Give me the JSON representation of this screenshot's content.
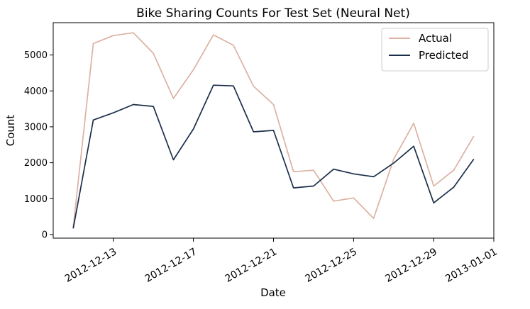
{
  "chart_data": {
    "type": "line",
    "title": "Bike Sharing Counts For Test Set (Neural Net)",
    "xlabel": "Date",
    "ylabel": "Count",
    "x": [
      "2012-12-11",
      "2012-12-12",
      "2012-12-13",
      "2012-12-14",
      "2012-12-15",
      "2012-12-16",
      "2012-12-17",
      "2012-12-18",
      "2012-12-19",
      "2012-12-20",
      "2012-12-21",
      "2012-12-22",
      "2012-12-23",
      "2012-12-24",
      "2012-12-25",
      "2012-12-26",
      "2012-12-27",
      "2012-12-28",
      "2012-12-29",
      "2012-12-30",
      "2012-12-31"
    ],
    "xlim": [
      "2012-12-10",
      "2013-01-01"
    ],
    "ylim": [
      -100,
      5900
    ],
    "x_ticks": [
      "2012-12-13",
      "2012-12-17",
      "2012-12-21",
      "2012-12-25",
      "2012-12-29",
      "2013-01-01"
    ],
    "y_ticks": [
      0,
      1000,
      2000,
      3000,
      4000,
      5000
    ],
    "series": [
      {
        "name": "Actual",
        "color": "#dbb2a3",
        "values": [
          200,
          5320,
          5540,
          5620,
          5050,
          3790,
          4590,
          5560,
          5270,
          4130,
          3620,
          1750,
          1790,
          930,
          1020,
          450,
          2100,
          3100,
          1350,
          1790,
          2740
        ]
      },
      {
        "name": "Predicted",
        "color": "#1b2f4a",
        "values": [
          170,
          3190,
          3390,
          3620,
          3570,
          2080,
          2940,
          4160,
          4140,
          2860,
          2900,
          1300,
          1350,
          1820,
          1690,
          1610,
          1990,
          2460,
          880,
          1320,
          2100
        ]
      }
    ],
    "legend_position": "top-right",
    "grid": false
  }
}
